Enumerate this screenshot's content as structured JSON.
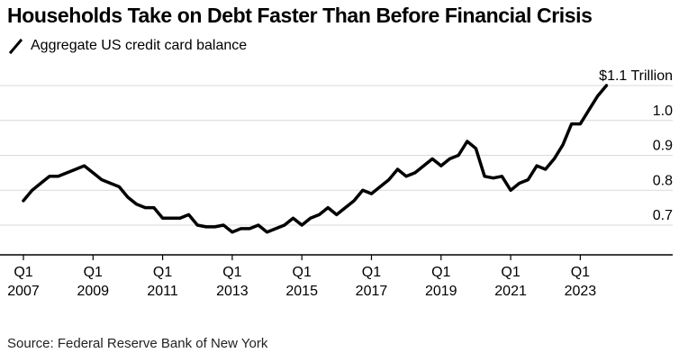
{
  "title": "Households Take on Debt Faster Than Before Financial Crisis",
  "source": "Source: Federal Reserve Bank of New York",
  "colors": {
    "line": "#000000",
    "grid": "#d9d9d9",
    "axis": "#000000",
    "text": "#000000"
  },
  "chart_data": {
    "type": "line",
    "legend": "Aggregate US credit card balance",
    "grid": true,
    "legend_position": "top-left",
    "y_axis_side": "right",
    "ylim": [
      0.62,
      1.1
    ],
    "y_ticks": [
      {
        "value": 0.7,
        "label": "0.7"
      },
      {
        "value": 0.8,
        "label": "0.8"
      },
      {
        "value": 0.9,
        "label": "0.9"
      },
      {
        "value": 1.0,
        "label": "1.0"
      },
      {
        "value": 1.1,
        "label": "$1.1 Trillion"
      }
    ],
    "xlim": [
      2007.0,
      2024.75
    ],
    "x_ticks": [
      {
        "value": 2007,
        "quarter": "Q1",
        "year": "2007"
      },
      {
        "value": 2009,
        "quarter": "Q1",
        "year": "2009"
      },
      {
        "value": 2011,
        "quarter": "Q1",
        "year": "2011"
      },
      {
        "value": 2013,
        "quarter": "Q1",
        "year": "2013"
      },
      {
        "value": 2015,
        "quarter": "Q1",
        "year": "2015"
      },
      {
        "value": 2017,
        "quarter": "Q1",
        "year": "2017"
      },
      {
        "value": 2019,
        "quarter": "Q1",
        "year": "2019"
      },
      {
        "value": 2021,
        "quarter": "Q1",
        "year": "2021"
      },
      {
        "value": 2023,
        "quarter": "Q1",
        "year": "2023"
      }
    ],
    "series": [
      {
        "name": "Aggregate US credit card balance",
        "points": [
          [
            2007.0,
            0.77
          ],
          [
            2007.25,
            0.8
          ],
          [
            2007.5,
            0.82
          ],
          [
            2007.75,
            0.84
          ],
          [
            2008.0,
            0.84
          ],
          [
            2008.25,
            0.85
          ],
          [
            2008.5,
            0.86
          ],
          [
            2008.75,
            0.87
          ],
          [
            2009.0,
            0.85
          ],
          [
            2009.25,
            0.83
          ],
          [
            2009.5,
            0.82
          ],
          [
            2009.75,
            0.81
          ],
          [
            2010.0,
            0.78
          ],
          [
            2010.25,
            0.76
          ],
          [
            2010.5,
            0.75
          ],
          [
            2010.75,
            0.75
          ],
          [
            2011.0,
            0.72
          ],
          [
            2011.25,
            0.72
          ],
          [
            2011.5,
            0.72
          ],
          [
            2011.75,
            0.73
          ],
          [
            2012.0,
            0.7
          ],
          [
            2012.25,
            0.695
          ],
          [
            2012.5,
            0.695
          ],
          [
            2012.75,
            0.7
          ],
          [
            2013.0,
            0.68
          ],
          [
            2013.25,
            0.69
          ],
          [
            2013.5,
            0.69
          ],
          [
            2013.75,
            0.7
          ],
          [
            2014.0,
            0.68
          ],
          [
            2014.25,
            0.69
          ],
          [
            2014.5,
            0.7
          ],
          [
            2014.75,
            0.72
          ],
          [
            2015.0,
            0.7
          ],
          [
            2015.25,
            0.72
          ],
          [
            2015.5,
            0.73
          ],
          [
            2015.75,
            0.75
          ],
          [
            2016.0,
            0.73
          ],
          [
            2016.25,
            0.75
          ],
          [
            2016.5,
            0.77
          ],
          [
            2016.75,
            0.8
          ],
          [
            2017.0,
            0.79
          ],
          [
            2017.25,
            0.81
          ],
          [
            2017.5,
            0.83
          ],
          [
            2017.75,
            0.86
          ],
          [
            2018.0,
            0.84
          ],
          [
            2018.25,
            0.85
          ],
          [
            2018.5,
            0.87
          ],
          [
            2018.75,
            0.89
          ],
          [
            2019.0,
            0.87
          ],
          [
            2019.25,
            0.89
          ],
          [
            2019.5,
            0.9
          ],
          [
            2019.75,
            0.94
          ],
          [
            2020.0,
            0.92
          ],
          [
            2020.25,
            0.84
          ],
          [
            2020.5,
            0.835
          ],
          [
            2020.75,
            0.84
          ],
          [
            2021.0,
            0.8
          ],
          [
            2021.25,
            0.82
          ],
          [
            2021.5,
            0.83
          ],
          [
            2021.75,
            0.87
          ],
          [
            2022.0,
            0.86
          ],
          [
            2022.25,
            0.89
          ],
          [
            2022.5,
            0.93
          ],
          [
            2022.75,
            0.99
          ],
          [
            2023.0,
            0.99
          ],
          [
            2023.25,
            1.03
          ],
          [
            2023.5,
            1.07
          ],
          [
            2023.75,
            1.1
          ]
        ]
      }
    ]
  }
}
